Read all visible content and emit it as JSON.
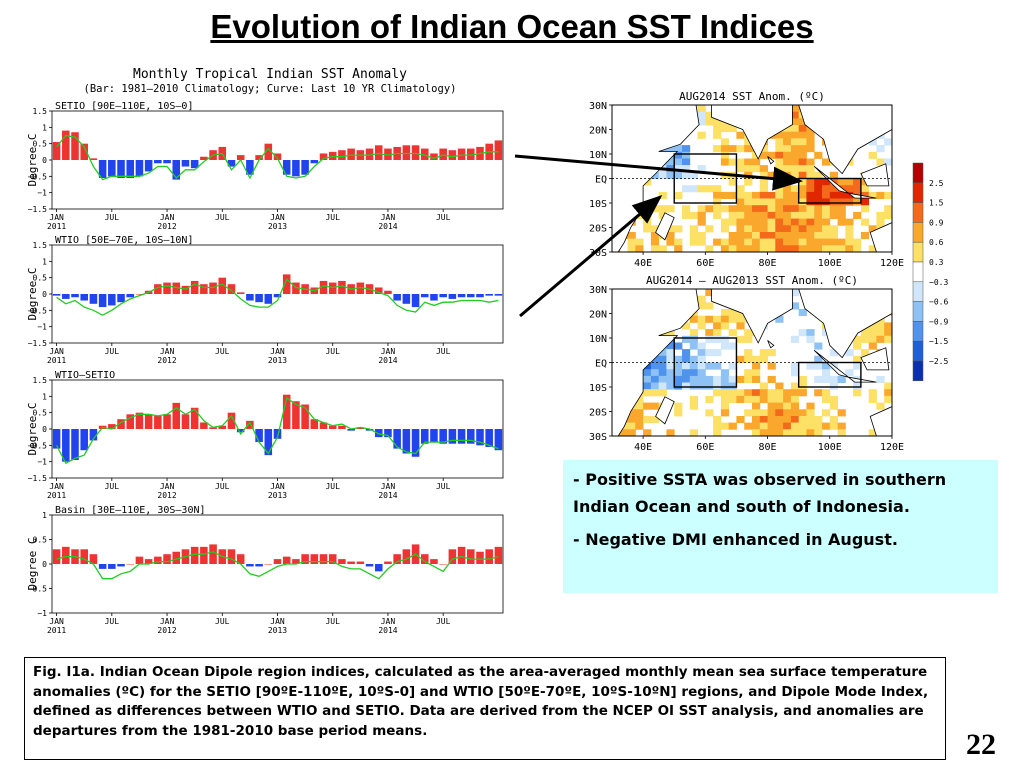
{
  "slide": {
    "title": "Evolution of Indian Ocean SST Indices",
    "page_number": "22",
    "bullets": [
      {
        "dash": "- ",
        "text": "Positive SSTA was observed in southern Indian Ocean and south of Indonesia."
      },
      {
        "dash": "- ",
        "text": "Negative DMI enhanced in August."
      }
    ],
    "caption": "Fig. I1a. Indian Ocean Dipole region indices, calculated as the area-averaged monthly mean sea surface temperature anomalies (ºC) for the SETIO [90ºE-110ºE, 10ºS-0] and WTIO [50ºE-70ºE, 10ºS-10ºN] regions, and Dipole Mode Index, defined as differences between WTIO and SETIO. Data are derived from the NCEP OI SST analysis, and anomalies are departures from the 1981-2010 base period means."
  },
  "chart_data": [
    {
      "type": "bar",
      "title": "Monthly Tropical Indian SST Anomaly",
      "subtitle": "(Bar: 1981—2010 Climatology; Curve: Last 10 YR Climatology)",
      "ylabel": "Degree C",
      "x_tick_labels": [
        {
          "m": 0,
          "l1": "JAN",
          "l2": "2011"
        },
        {
          "m": 6,
          "l1": "JUL",
          "l2": ""
        },
        {
          "m": 12,
          "l1": "JAN",
          "l2": "2012"
        },
        {
          "m": 18,
          "l1": "JUL",
          "l2": ""
        },
        {
          "m": 24,
          "l1": "JAN",
          "l2": "2013"
        },
        {
          "m": 30,
          "l1": "JUL",
          "l2": ""
        },
        {
          "m": 36,
          "l1": "JAN",
          "l2": "2014"
        },
        {
          "m": 42,
          "l1": "JUL",
          "l2": ""
        }
      ],
      "panels": [
        {
          "label": "SETIO [90E—110E, 10S—0]",
          "ylim": [
            -1.5,
            1.5
          ],
          "yticks": [
            1.5,
            1,
            0.5,
            0,
            -0.5,
            -1,
            -1.5
          ],
          "ytick_labels": [
            "1.5",
            "1",
            "0.5",
            "0",
            "−0.5",
            "−1",
            "−1.5"
          ],
          "bars": [
            0.55,
            0.9,
            0.85,
            0.5,
            0.05,
            -0.55,
            -0.5,
            -0.55,
            -0.55,
            -0.5,
            -0.35,
            -0.1,
            -0.1,
            -0.6,
            -0.2,
            -0.25,
            0.1,
            0.3,
            0.4,
            -0.2,
            0.15,
            -0.45,
            0.15,
            0.5,
            0.2,
            -0.45,
            -0.5,
            -0.45,
            -0.1,
            0.2,
            0.25,
            0.3,
            0.35,
            0.3,
            0.35,
            0.45,
            0.35,
            0.4,
            0.45,
            0.45,
            0.35,
            0.2,
            0.35,
            0.3,
            0.35,
            0.35,
            0.4,
            0.5,
            0.6
          ],
          "curve": [
            0.4,
            0.75,
            0.7,
            0.4,
            -0.2,
            -0.6,
            -0.5,
            -0.5,
            -0.5,
            -0.5,
            -0.4,
            -0.2,
            -0.2,
            -0.55,
            -0.3,
            -0.3,
            -0.05,
            0.15,
            0.2,
            -0.3,
            0,
            -0.55,
            0,
            0.35,
            0.05,
            -0.5,
            -0.55,
            -0.5,
            -0.2,
            0.05,
            0.1,
            0.1,
            0.15,
            0.15,
            0.15,
            0.2,
            0.15,
            0.2,
            0.2,
            0.2,
            0.15,
            0.05,
            0.15,
            0.1,
            0.15,
            0.15,
            0.2,
            0.25,
            0.25
          ]
        },
        {
          "label": "WTIO [50E—70E, 10S—10N]",
          "ylim": [
            -1.5,
            1.5
          ],
          "yticks": [
            1.5,
            1,
            0.5,
            0,
            -0.5,
            -1,
            -1.5
          ],
          "ytick_labels": [
            "1.5",
            "1",
            "0.5",
            "0",
            "−0.5",
            "−1",
            "−1.5"
          ],
          "bars": [
            -0.05,
            -0.15,
            -0.1,
            -0.2,
            -0.3,
            -0.4,
            -0.35,
            -0.25,
            -0.1,
            0,
            0.1,
            0.3,
            0.35,
            0.35,
            0.25,
            0.4,
            0.3,
            0.35,
            0.5,
            0.3,
            0.05,
            -0.2,
            -0.25,
            -0.3,
            -0.1,
            0.6,
            0.35,
            0.3,
            0.2,
            0.4,
            0.35,
            0.4,
            0.3,
            0.35,
            0.3,
            0.2,
            0.1,
            -0.2,
            -0.3,
            -0.4,
            -0.1,
            -0.2,
            -0.1,
            -0.15,
            -0.1,
            -0.1,
            -0.1,
            -0.05,
            -0.05
          ],
          "curve": [
            -0.1,
            -0.3,
            -0.2,
            -0.4,
            -0.5,
            -0.65,
            -0.5,
            -0.3,
            -0.15,
            -0.05,
            0.05,
            0.2,
            0.25,
            0.2,
            0.15,
            0.3,
            0.2,
            0.2,
            0.3,
            0.1,
            -0.15,
            -0.35,
            -0.4,
            -0.4,
            -0.2,
            0.45,
            0.2,
            0.15,
            0.1,
            0.25,
            0.2,
            0.25,
            0.15,
            0.2,
            0.15,
            0.05,
            -0.05,
            -0.35,
            -0.5,
            -0.55,
            -0.25,
            -0.35,
            -0.25,
            -0.25,
            -0.2,
            -0.2,
            -0.2,
            -0.25,
            -0.2
          ]
        },
        {
          "label": "WTIO—SETIO",
          "ylim": [
            -1.5,
            1.5
          ],
          "yticks": [
            1.5,
            1,
            0.5,
            0,
            -0.5,
            -1,
            -1.5
          ],
          "ytick_labels": [
            "1.5",
            "1",
            "0.5",
            "0",
            "−0.5",
            "−1",
            "−1.5"
          ],
          "bars": [
            -0.6,
            -1.0,
            -0.95,
            -0.65,
            -0.35,
            0.1,
            0.15,
            0.3,
            0.45,
            0.5,
            0.45,
            0.4,
            0.45,
            0.8,
            0.45,
            0.65,
            0.2,
            0.05,
            0.1,
            0.5,
            -0.1,
            0.25,
            -0.4,
            -0.8,
            -0.3,
            1.05,
            0.85,
            0.75,
            0.3,
            0.2,
            0.1,
            0.1,
            -0.05,
            0.05,
            -0.05,
            -0.25,
            -0.25,
            -0.6,
            -0.75,
            -0.85,
            -0.45,
            -0.4,
            -0.45,
            -0.45,
            -0.45,
            -0.45,
            -0.5,
            -0.55,
            -0.65
          ],
          "curve": [
            -0.5,
            -1.05,
            -0.9,
            -0.8,
            -0.3,
            0.05,
            0.0,
            0.2,
            0.35,
            0.45,
            0.45,
            0.4,
            0.45,
            0.65,
            0.45,
            0.6,
            0.25,
            0.05,
            0.1,
            0.4,
            -0.15,
            0.2,
            -0.4,
            -0.75,
            -0.25,
            0.95,
            0.75,
            0.65,
            0.3,
            0.2,
            0.1,
            0.15,
            0.0,
            0.05,
            0.0,
            -0.15,
            -0.2,
            -0.55,
            -0.7,
            -0.75,
            -0.4,
            -0.4,
            -0.4,
            -0.35,
            -0.35,
            -0.35,
            -0.4,
            -0.5,
            -0.6
          ]
        },
        {
          "label": "Basin [30E—110E, 30S—30N]",
          "ylim": [
            -1,
            1
          ],
          "yticks": [
            1,
            0.5,
            0,
            -0.5,
            -1
          ],
          "ytick_labels": [
            "1",
            "0.5",
            "0",
            "−0.5",
            "−1"
          ],
          "bars": [
            0.3,
            0.35,
            0.3,
            0.3,
            0.2,
            -0.1,
            -0.1,
            -0.05,
            0,
            0.15,
            0.1,
            0.15,
            0.2,
            0.25,
            0.3,
            0.35,
            0.35,
            0.4,
            0.3,
            0.3,
            0.2,
            -0.05,
            -0.05,
            0,
            0.1,
            0.15,
            0.1,
            0.2,
            0.2,
            0.2,
            0.2,
            0.1,
            0.05,
            0.05,
            -0.05,
            -0.15,
            0.05,
            0.2,
            0.3,
            0.4,
            0.2,
            0.1,
            0,
            0.3,
            0.35,
            0.3,
            0.25,
            0.3,
            0.35
          ],
          "curve": [
            0.1,
            0.15,
            0.15,
            0.1,
            0.0,
            -0.3,
            -0.3,
            -0.2,
            -0.15,
            0.0,
            0.0,
            0.05,
            0.05,
            0.1,
            0.15,
            0.2,
            0.2,
            0.25,
            0.15,
            0.1,
            0.0,
            -0.2,
            -0.25,
            -0.15,
            -0.05,
            0.0,
            0.0,
            0.05,
            0.05,
            0.05,
            0.05,
            -0.05,
            -0.1,
            -0.1,
            -0.2,
            -0.3,
            -0.1,
            0.05,
            0.1,
            0.2,
            0.05,
            -0.05,
            -0.15,
            0.1,
            0.15,
            0.1,
            0.1,
            0.1,
            0.15
          ]
        }
      ],
      "colors": {
        "positive": "#ee3333",
        "negative": "#2244ee",
        "curve": "#22cc22"
      }
    },
    {
      "type": "heatmap",
      "maps": [
        {
          "title": "AUG2014 SST Anom. (ºC)"
        },
        {
          "title": "AUG2014 — AUG2013 SST Anom. (ºC)"
        }
      ],
      "lat_labels": [
        "30N",
        "20N",
        "10N",
        "EQ",
        "10S",
        "20S",
        "30S"
      ],
      "lon_labels": [
        "40E",
        "60E",
        "80E",
        "100E",
        "120E"
      ],
      "boxes": [
        {
          "name": "WTIO",
          "lon": [
            50,
            70
          ],
          "lat": [
            -10,
            10
          ]
        },
        {
          "name": "SETIO",
          "lon": [
            90,
            110
          ],
          "lat": [
            -10,
            0
          ]
        }
      ],
      "colorbar": {
        "labels": [
          "2.5",
          "1.5",
          "0.9",
          "0.6",
          "0.3",
          "−0.3",
          "−0.6",
          "−0.9",
          "−1.5",
          "−2.5"
        ],
        "colors": [
          "#b30000",
          "#e02800",
          "#f36a1a",
          "#f9a82d",
          "#fde066",
          "#ffffff",
          "#cfe6fb",
          "#8fc2f4",
          "#4f93ec",
          "#1f5fd6",
          "#0a30b0"
        ]
      }
    }
  ]
}
